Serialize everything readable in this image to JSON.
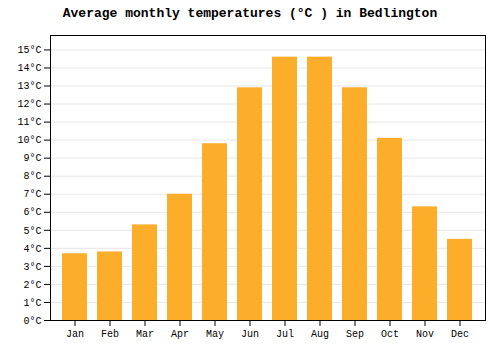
{
  "chart_data": {
    "type": "bar",
    "title": "Average monthly temperatures (°C ) in Bedlington",
    "categories": [
      "Jan",
      "Feb",
      "Mar",
      "Apr",
      "May",
      "Jun",
      "Jul",
      "Aug",
      "Sep",
      "Oct",
      "Nov",
      "Dec"
    ],
    "values": [
      3.7,
      3.8,
      5.3,
      7.0,
      9.8,
      12.9,
      14.6,
      14.6,
      12.9,
      10.1,
      6.3,
      4.5
    ],
    "color": "#FCAD2A",
    "ylim": [
      0,
      15.8
    ],
    "yticks": [
      {
        "value": 0,
        "label": "0°C"
      },
      {
        "value": 1,
        "label": "1°C"
      },
      {
        "value": 2,
        "label": "2°C"
      },
      {
        "value": 3,
        "label": "3°C"
      },
      {
        "value": 4,
        "label": "4°C"
      },
      {
        "value": 5,
        "label": "5°C"
      },
      {
        "value": 6,
        "label": "6°C"
      },
      {
        "value": 7,
        "label": "7°C"
      },
      {
        "value": 8,
        "label": "8°C"
      },
      {
        "value": 9,
        "label": "9°C"
      },
      {
        "value": 10,
        "label": "10°C"
      },
      {
        "value": 11,
        "label": "11°C"
      },
      {
        "value": 12,
        "label": "12°C"
      },
      {
        "value": 13,
        "label": "13°C"
      },
      {
        "value": 14,
        "label": "14°C"
      },
      {
        "value": 15,
        "label": "15°C"
      }
    ],
    "grid": true
  }
}
